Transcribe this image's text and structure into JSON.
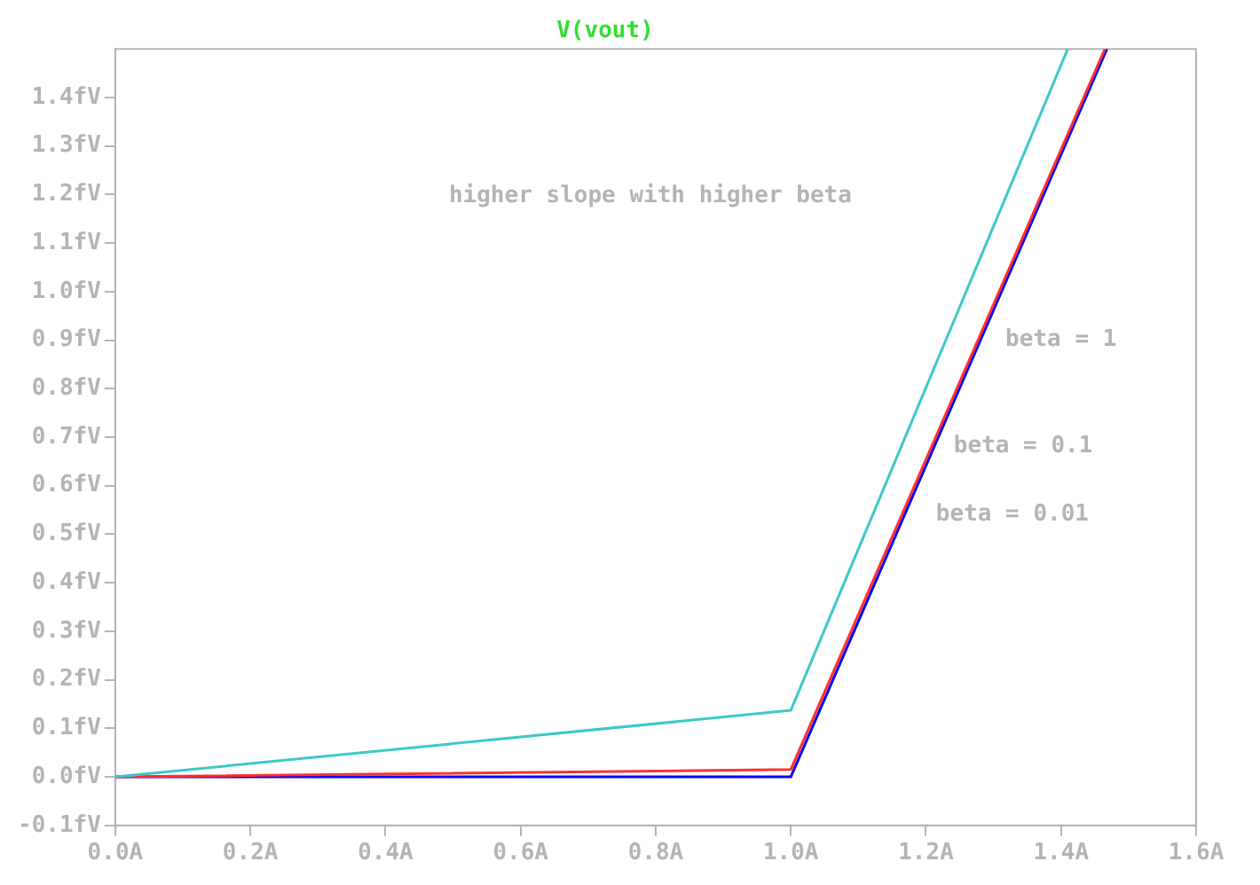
{
  "chart_data": {
    "type": "line",
    "title": "V(vout)",
    "xlim": [
      0,
      1.6
    ],
    "xticks": [
      {
        "value": 0,
        "label": "0.0A"
      },
      {
        "value": 0.2,
        "label": "0.2A"
      },
      {
        "value": 0.4,
        "label": "0.4A"
      },
      {
        "value": 0.6,
        "label": "0.6A"
      },
      {
        "value": 0.8,
        "label": "0.8A"
      },
      {
        "value": 1,
        "label": "1.0A"
      },
      {
        "value": 1.2,
        "label": "1.2A"
      },
      {
        "value": 1.4,
        "label": "1.4A"
      },
      {
        "value": 1.6,
        "label": "1.6A"
      }
    ],
    "ylim": [
      -0.1,
      1.5
    ],
    "yticks": [
      {
        "value": -0.1,
        "label": "-0.1fV"
      },
      {
        "value": 0,
        "label": "0.0fV"
      },
      {
        "value": 0.1,
        "label": "0.1fV"
      },
      {
        "value": 0.2,
        "label": "0.2fV"
      },
      {
        "value": 0.3,
        "label": "0.3fV"
      },
      {
        "value": 0.4,
        "label": "0.4fV"
      },
      {
        "value": 0.5,
        "label": "0.5fV"
      },
      {
        "value": 0.6,
        "label": "0.6fV"
      },
      {
        "value": 0.7,
        "label": "0.7fV"
      },
      {
        "value": 0.8,
        "label": "0.8fV"
      },
      {
        "value": 0.9,
        "label": "0.9fV"
      },
      {
        "value": 1,
        "label": "1.0fV"
      },
      {
        "value": 1.1,
        "label": "1.1fV"
      },
      {
        "value": 1.2,
        "label": "1.2fV"
      },
      {
        "value": 1.3,
        "label": "1.3fV"
      },
      {
        "value": 1.4,
        "label": "1.4fV"
      }
    ],
    "series": [
      {
        "color": "#3cc8c8",
        "x": [
          0,
          1.0,
          1.41
        ],
        "values": [
          0,
          0.137,
          1.5
        ]
      },
      {
        "color": "#ff3030",
        "x": [
          0,
          1.0,
          1.465
        ],
        "values": [
          0,
          0.015,
          1.5
        ]
      },
      {
        "color": "#0000ff",
        "x": [
          0,
          1.0,
          1.468
        ],
        "values": [
          0,
          0,
          1.5
        ]
      }
    ],
    "annotations": [
      "higher slope with higher beta",
      "beta = 1",
      "beta = 0.1",
      "beta = 0.01"
    ],
    "grid": false,
    "legend": false
  }
}
